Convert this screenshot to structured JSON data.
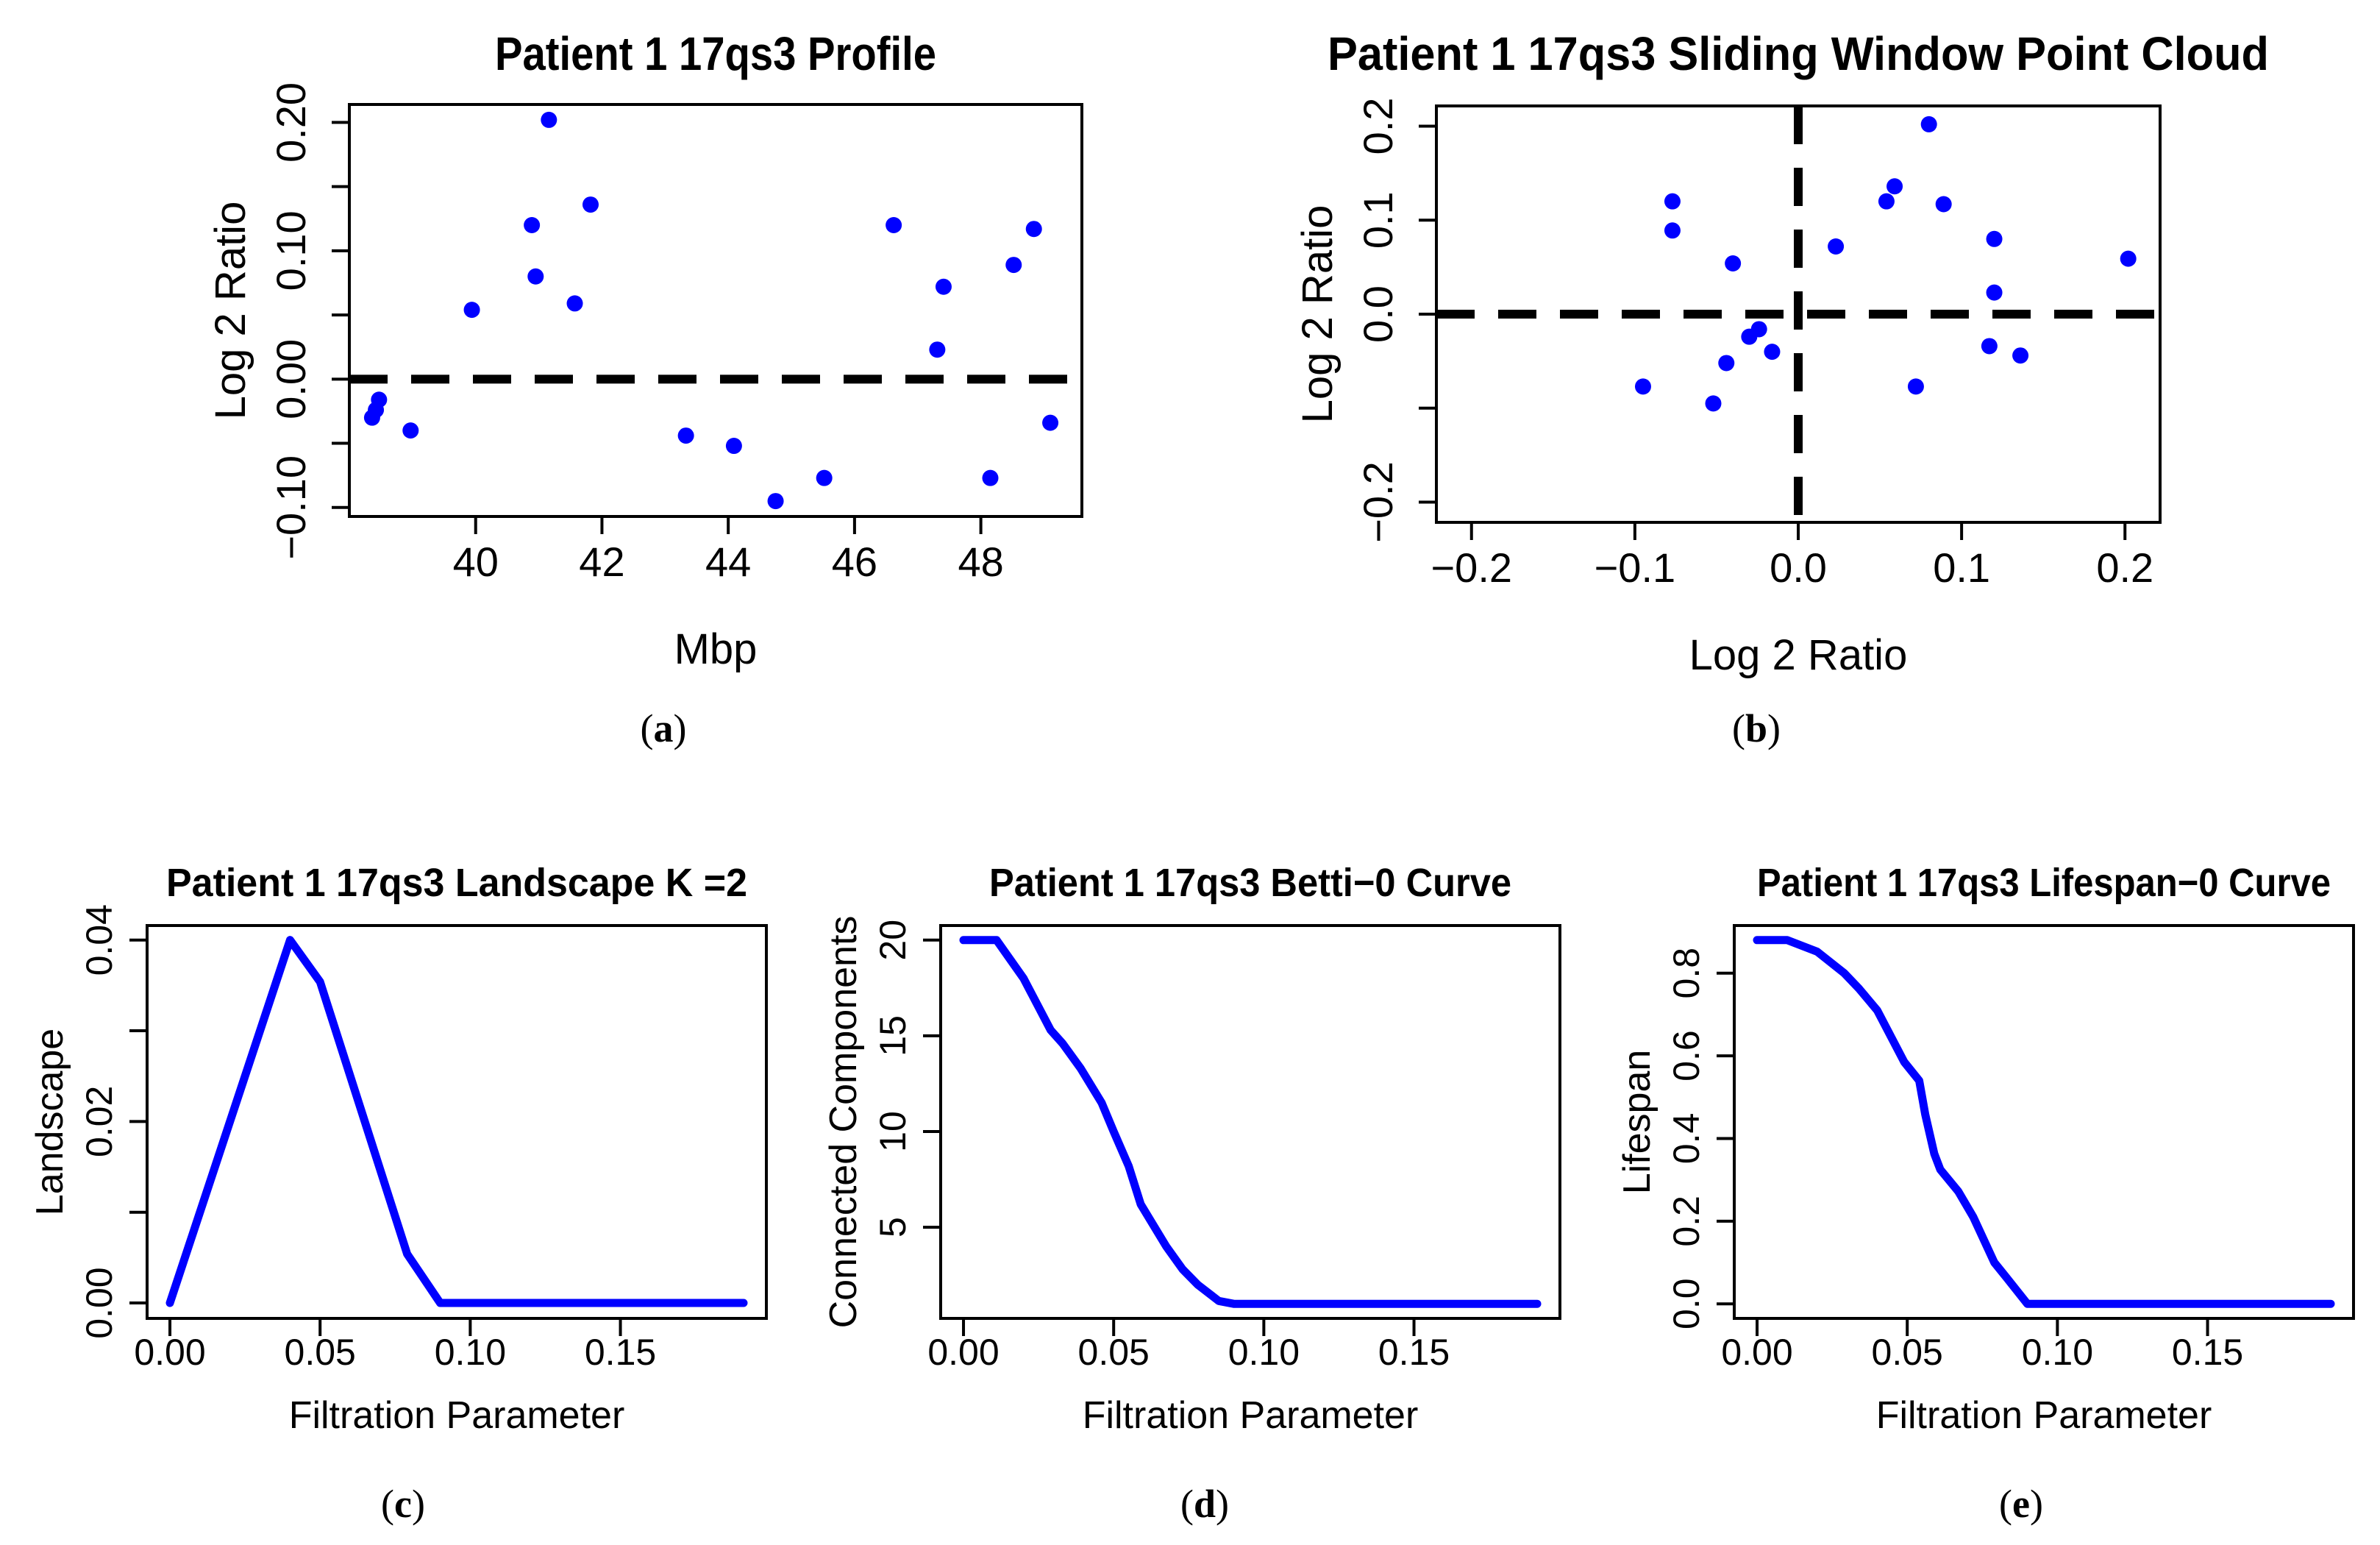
{
  "figure": {
    "background": "#ffffff",
    "point_color": "#0000ff",
    "curve_color": "#0000ff",
    "axis_color": "#000000",
    "ref_line_color": "#000000"
  },
  "chart_data": [
    {
      "id": "profile",
      "caption": "(a)",
      "type": "scatter",
      "title": "Patient 1 17qs3 Profile",
      "xlabel": "Mbp",
      "ylabel": "Log 2 Ratio",
      "xlim": [
        38.0,
        49.6
      ],
      "ylim": [
        -0.107,
        0.214
      ],
      "xticks": [
        {
          "v": 40,
          "label": "40"
        },
        {
          "v": 42,
          "label": "42"
        },
        {
          "v": 44,
          "label": "44"
        },
        {
          "v": 46,
          "label": "46"
        },
        {
          "v": 48,
          "label": "48"
        }
      ],
      "yticks": [
        {
          "v": -0.1,
          "label": "−0.10"
        },
        {
          "v": -0.05,
          "label": ""
        },
        {
          "v": 0.0,
          "label": "0.00"
        },
        {
          "v": 0.05,
          "label": ""
        },
        {
          "v": 0.1,
          "label": "0.10"
        },
        {
          "v": 0.15,
          "label": ""
        },
        {
          "v": 0.2,
          "label": "0.20"
        }
      ],
      "ref_h": 0.0,
      "ref_v": null,
      "points": [
        [
          38.36,
          -0.03
        ],
        [
          38.42,
          -0.024
        ],
        [
          38.47,
          -0.016
        ],
        [
          38.97,
          -0.04
        ],
        [
          39.94,
          0.054
        ],
        [
          40.89,
          0.12
        ],
        [
          40.95,
          0.08
        ],
        [
          41.16,
          0.202
        ],
        [
          41.57,
          0.059
        ],
        [
          41.82,
          0.136
        ],
        [
          43.33,
          -0.044
        ],
        [
          44.09,
          -0.052
        ],
        [
          44.75,
          -0.095
        ],
        [
          45.52,
          -0.077
        ],
        [
          46.62,
          0.12
        ],
        [
          47.31,
          0.023
        ],
        [
          47.41,
          0.072
        ],
        [
          48.15,
          -0.077
        ],
        [
          48.52,
          0.089
        ],
        [
          48.84,
          0.117
        ],
        [
          49.1,
          -0.034
        ]
      ]
    },
    {
      "id": "point-cloud",
      "caption": "(b)",
      "type": "scatter",
      "title": "Patient 1 17qs3 Sliding Window Point Cloud",
      "xlabel": "Log 2 Ratio",
      "ylabel": "Log 2 Ratio",
      "xlim": [
        -0.2215,
        0.2215
      ],
      "ylim": [
        -0.2215,
        0.2215
      ],
      "xticks": [
        {
          "v": -0.2,
          "label": "−0.2"
        },
        {
          "v": -0.1,
          "label": "−0.1"
        },
        {
          "v": 0.0,
          "label": "0.0"
        },
        {
          "v": 0.1,
          "label": "0.1"
        },
        {
          "v": 0.2,
          "label": "0.2"
        }
      ],
      "yticks": [
        {
          "v": -0.2,
          "label": "−0.2"
        },
        {
          "v": -0.1,
          "label": ""
        },
        {
          "v": 0.0,
          "label": "0.0"
        },
        {
          "v": 0.1,
          "label": "0.1"
        },
        {
          "v": 0.2,
          "label": "0.2"
        }
      ],
      "ref_h": 0.0,
      "ref_v": 0.0,
      "points": [
        [
          -0.03,
          -0.024
        ],
        [
          -0.024,
          -0.016
        ],
        [
          -0.016,
          -0.04
        ],
        [
          -0.04,
          0.054
        ],
        [
          0.054,
          0.12
        ],
        [
          0.12,
          0.08
        ],
        [
          0.08,
          0.202
        ],
        [
          0.202,
          0.059
        ],
        [
          0.059,
          0.136
        ],
        [
          0.136,
          -0.044
        ],
        [
          -0.044,
          -0.052
        ],
        [
          -0.052,
          -0.095
        ],
        [
          -0.095,
          -0.077
        ],
        [
          -0.077,
          0.12
        ],
        [
          0.12,
          0.023
        ],
        [
          0.023,
          0.072
        ],
        [
          0.072,
          -0.077
        ],
        [
          -0.077,
          0.089
        ],
        [
          0.089,
          0.117
        ],
        [
          0.117,
          -0.034
        ]
      ]
    },
    {
      "id": "landscape",
      "caption": "(c)",
      "type": "line",
      "title": "Patient 1 17qs3 Landscape K =2",
      "xlabel": "Filtration Parameter",
      "ylabel": "Landscape",
      "xlim": [
        -0.0076,
        0.1986
      ],
      "ylim": [
        -0.0017,
        0.0416
      ],
      "xticks": [
        {
          "v": 0.0,
          "label": "0.00"
        },
        {
          "v": 0.05,
          "label": "0.05"
        },
        {
          "v": 0.1,
          "label": "0.10"
        },
        {
          "v": 0.15,
          "label": "0.15"
        }
      ],
      "yticks": [
        {
          "v": 0.0,
          "label": "0.00"
        },
        {
          "v": 0.01,
          "label": ""
        },
        {
          "v": 0.02,
          "label": "0.02"
        },
        {
          "v": 0.03,
          "label": ""
        },
        {
          "v": 0.04,
          "label": "0.04"
        }
      ],
      "ref_h": null,
      "ref_v": null,
      "line": [
        [
          0.0,
          0.0
        ],
        [
          0.04,
          0.04
        ],
        [
          0.05,
          0.0354
        ],
        [
          0.079,
          0.0054
        ],
        [
          0.09,
          0.0
        ],
        [
          0.191,
          0.0
        ]
      ]
    },
    {
      "id": "betti0",
      "caption": "(d)",
      "type": "line",
      "title": "Patient 1 17qs3 Betti−0 Curve",
      "xlabel": "Filtration Parameter",
      "ylabel": "Connected Components",
      "xlim": [
        -0.0076,
        0.1986
      ],
      "ylim": [
        0.24,
        20.76
      ],
      "xticks": [
        {
          "v": 0.0,
          "label": "0.00"
        },
        {
          "v": 0.05,
          "label": "0.05"
        },
        {
          "v": 0.1,
          "label": "0.10"
        },
        {
          "v": 0.15,
          "label": "0.15"
        }
      ],
      "yticks": [
        {
          "v": 5,
          "label": "5"
        },
        {
          "v": 10,
          "label": "10"
        },
        {
          "v": 15,
          "label": "15"
        },
        {
          "v": 20,
          "label": "20"
        }
      ],
      "ref_h": null,
      "ref_v": null,
      "line": [
        [
          0.0,
          20
        ],
        [
          0.011,
          20
        ],
        [
          0.02,
          18
        ],
        [
          0.029,
          15.3
        ],
        [
          0.033,
          14.6
        ],
        [
          0.039,
          13.3
        ],
        [
          0.046,
          11.5
        ],
        [
          0.05,
          10
        ],
        [
          0.055,
          8.2
        ],
        [
          0.059,
          6.2
        ],
        [
          0.0675,
          4.0
        ],
        [
          0.073,
          2.8
        ],
        [
          0.078,
          2.0
        ],
        [
          0.085,
          1.15
        ],
        [
          0.09,
          1.0
        ],
        [
          0.191,
          1.0
        ]
      ]
    },
    {
      "id": "lifespan0",
      "caption": "(e)",
      "type": "line",
      "title": "Patient 1 17qs3 Lifespan−0 Curve",
      "xlabel": "Filtration Parameter",
      "ylabel": "Lifespan",
      "xlim": [
        -0.0076,
        0.1986
      ],
      "ylim": [
        -0.0352,
        0.9152
      ],
      "xticks": [
        {
          "v": 0.0,
          "label": "0.00"
        },
        {
          "v": 0.05,
          "label": "0.05"
        },
        {
          "v": 0.1,
          "label": "0.10"
        },
        {
          "v": 0.15,
          "label": "0.15"
        }
      ],
      "yticks": [
        {
          "v": 0.0,
          "label": "0.0"
        },
        {
          "v": 0.2,
          "label": "0.2"
        },
        {
          "v": 0.4,
          "label": "0.4"
        },
        {
          "v": 0.6,
          "label": "0.6"
        },
        {
          "v": 0.8,
          "label": "0.8"
        }
      ],
      "ref_h": null,
      "ref_v": null,
      "line": [
        [
          0.0,
          0.88
        ],
        [
          0.01,
          0.88
        ],
        [
          0.02,
          0.852
        ],
        [
          0.029,
          0.8
        ],
        [
          0.034,
          0.762
        ],
        [
          0.04,
          0.71
        ],
        [
          0.049,
          0.585
        ],
        [
          0.054,
          0.54
        ],
        [
          0.056,
          0.458
        ],
        [
          0.059,
          0.363
        ],
        [
          0.061,
          0.325
        ],
        [
          0.067,
          0.272
        ],
        [
          0.072,
          0.21
        ],
        [
          0.079,
          0.1
        ],
        [
          0.083,
          0.064
        ],
        [
          0.09,
          0.0
        ],
        [
          0.191,
          0.0
        ]
      ]
    }
  ]
}
